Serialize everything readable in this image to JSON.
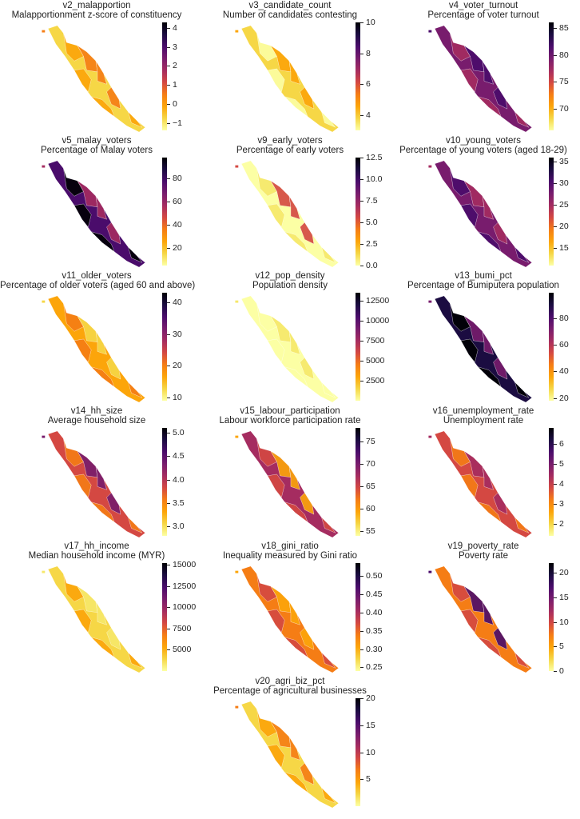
{
  "colormap": [
    "#fcffa4",
    "#f6d746",
    "#fca50a",
    "#f57d15",
    "#d44842",
    "#a52c60",
    "#781c6d",
    "#4a0c6b",
    "#1b0c41",
    "#000004"
  ],
  "panels": [
    {
      "var": "v2_malapportion",
      "desc": "Malapportionment z-score of constituency",
      "range": [
        -1.4,
        4.3
      ],
      "ticks": [
        -1,
        0,
        1,
        2,
        3,
        4
      ],
      "tick_labels": [
        "−1",
        "0",
        "1",
        "2",
        "3",
        "4"
      ],
      "fill": [
        "#f6d746",
        "#fca50a",
        "#f57d15"
      ]
    },
    {
      "var": "v3_candidate_count",
      "desc": "Number of candidates contesting",
      "range": [
        3,
        10
      ],
      "ticks": [
        4,
        6,
        8,
        10
      ],
      "tick_labels": [
        "4",
        "6",
        "8",
        "10"
      ],
      "fill": [
        "#f6d746",
        "#fcffa4",
        "#fca50a"
      ]
    },
    {
      "var": "v4_voter_turnout",
      "desc": "Percentage of voter turnout",
      "range": [
        66,
        86
      ],
      "ticks": [
        70,
        75,
        80,
        85
      ],
      "tick_labels": [
        "70",
        "75",
        "80",
        "85"
      ],
      "fill": [
        "#781c6d",
        "#a52c60",
        "#4a0c6b"
      ]
    },
    {
      "var": "v5_malay_voters",
      "desc": "Percentage of Malay voters",
      "range": [
        5,
        98
      ],
      "ticks": [
        20,
        40,
        60,
        80
      ],
      "tick_labels": [
        "20",
        "40",
        "60",
        "80"
      ],
      "fill": [
        "#4a0c6b",
        "#000004",
        "#a52c60"
      ]
    },
    {
      "var": "v9_early_voters",
      "desc": "Percentage of early voters",
      "range": [
        0,
        12.5
      ],
      "ticks": [
        0,
        2.5,
        5,
        7.5,
        10,
        12.5
      ],
      "tick_labels": [
        "0.0",
        "2.5",
        "5.0",
        "7.5",
        "10.0",
        "12.5"
      ],
      "fill": [
        "#fcffa4",
        "#f6e86a",
        "#d44842"
      ]
    },
    {
      "var": "v10_young_voters",
      "desc": "Percentage of young voters (aged 18-29)",
      "range": [
        11,
        36
      ],
      "ticks": [
        15,
        20,
        25,
        30,
        35
      ],
      "tick_labels": [
        "15",
        "20",
        "25",
        "30",
        "35"
      ],
      "fill": [
        "#781c6d",
        "#4a0c6b",
        "#a52c60"
      ]
    },
    {
      "var": "v11_older_voters",
      "desc": "Percentage of older voters (aged 60 and above)",
      "range": [
        9,
        43
      ],
      "ticks": [
        10,
        20,
        30,
        40
      ],
      "tick_labels": [
        "10",
        "20",
        "30",
        "40"
      ],
      "fill": [
        "#fca50a",
        "#f57d15",
        "#f6d746"
      ]
    },
    {
      "var": "v12_pop_density",
      "desc": "Population density",
      "range": [
        0,
        13500
      ],
      "ticks": [
        2500,
        5000,
        7500,
        10000,
        12500
      ],
      "tick_labels": [
        "2500",
        "5000",
        "7500",
        "10000",
        "12500"
      ],
      "fill": [
        "#fcffa4",
        "#fcffa4",
        "#f6e86a"
      ]
    },
    {
      "var": "v13_bumi_pct",
      "desc": "Percentage of Bumiputera population",
      "range": [
        18,
        99
      ],
      "ticks": [
        20,
        40,
        60,
        80
      ],
      "tick_labels": [
        "20",
        "40",
        "60",
        "80"
      ],
      "fill": [
        "#1b0c41",
        "#000004",
        "#781c6d"
      ]
    },
    {
      "var": "v14_hh_size",
      "desc": "Average household size",
      "range": [
        2.8,
        5.1
      ],
      "ticks": [
        3.0,
        3.5,
        4.0,
        4.5,
        5.0
      ],
      "tick_labels": [
        "3.0",
        "3.5",
        "4.0",
        "4.5",
        "5.0"
      ],
      "fill": [
        "#d44842",
        "#f57d15",
        "#781c6d"
      ]
    },
    {
      "var": "v15_labour_participation",
      "desc": "Labour workforce participation rate",
      "range": [
        54,
        78
      ],
      "ticks": [
        55,
        60,
        65,
        70,
        75
      ],
      "tick_labels": [
        "55",
        "60",
        "65",
        "70",
        "75"
      ],
      "fill": [
        "#a52c60",
        "#d44842",
        "#fca50a"
      ]
    },
    {
      "var": "v16_unemployment_rate",
      "desc": "Unemployment rate",
      "range": [
        1.4,
        6.8
      ],
      "ticks": [
        2,
        3,
        4,
        5,
        6
      ],
      "tick_labels": [
        "2",
        "3",
        "4",
        "5",
        "6"
      ],
      "fill": [
        "#d44842",
        "#f57d15",
        "#a52c60"
      ]
    },
    {
      "var": "v17_hh_income",
      "desc": "Median household income (MYR)",
      "range": [
        2500,
        15200
      ],
      "ticks": [
        5000,
        7500,
        10000,
        12500,
        15000
      ],
      "tick_labels": [
        "5000",
        "7500",
        "10000",
        "12500",
        "15000"
      ],
      "fill": [
        "#f6d746",
        "#fca50a",
        "#f6e86a"
      ]
    },
    {
      "var": "v18_gini_ratio",
      "desc": "Inequality measured by Gini ratio",
      "range": [
        0.24,
        0.535
      ],
      "ticks": [
        0.25,
        0.3,
        0.35,
        0.4,
        0.45,
        0.5
      ],
      "tick_labels": [
        "0.25",
        "0.30",
        "0.35",
        "0.40",
        "0.45",
        "0.50"
      ],
      "fill": [
        "#f57d15",
        "#d44842",
        "#fca50a"
      ]
    },
    {
      "var": "v19_poverty_rate",
      "desc": "Poverty rate",
      "range": [
        0,
        22
      ],
      "ticks": [
        0,
        5,
        10,
        15,
        20
      ],
      "tick_labels": [
        "0",
        "5",
        "10",
        "15",
        "20"
      ],
      "fill": [
        "#f57d15",
        "#d44842",
        "#4a0c6b"
      ]
    },
    {
      "var": "v20_agri_biz_pct",
      "desc": "Percentage of agricultural businesses",
      "range": [
        0,
        20
      ],
      "ticks": [
        5,
        10,
        15,
        20
      ],
      "tick_labels": [
        "5",
        "10",
        "15",
        "20"
      ],
      "fill": [
        "#f6d746",
        "#fca50a",
        "#f57d15"
      ]
    }
  ]
}
